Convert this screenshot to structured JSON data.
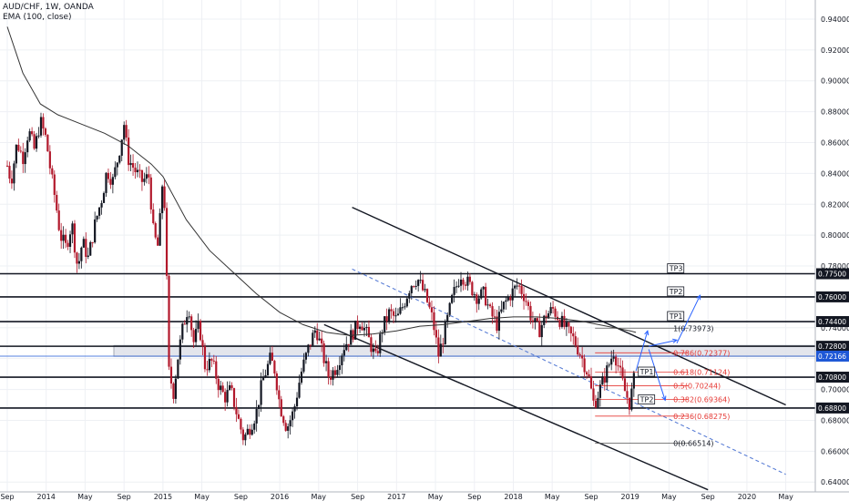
{
  "header": {
    "symbol_line": "AUD/CHF, 1W, OANDA",
    "indicator_line": "EMA (100, close)"
  },
  "colors": {
    "candle_up": "#131722",
    "candle_down": "#b2182b",
    "ema": "#333333",
    "fib": "#e53935",
    "channel_dash": "#5b7fd6",
    "last_price_badge": "#1e57d6",
    "level_badge": "#131722",
    "zone_fill": "#e0e3eb"
  },
  "chart_data": {
    "type": "candlestick",
    "title": "AUD/CHF, 1W, OANDA",
    "indicator": "EMA (100, close)",
    "y_axis": {
      "range": [
        0.636,
        0.95
      ],
      "ticks": [
        "0.94000",
        "0.92000",
        "0.90000",
        "0.88000",
        "0.86000",
        "0.84000",
        "0.82000",
        "0.80000",
        "0.78000",
        "0.76000",
        "0.74000",
        "0.72000",
        "0.70000",
        "0.68000",
        "0.66000",
        "0.64000"
      ],
      "grid": true
    },
    "x_axis": {
      "ticks": [
        {
          "label": "Sep",
          "t": 2013.667
        },
        {
          "label": "2014",
          "t": 2014.0
        },
        {
          "label": "May",
          "t": 2014.333
        },
        {
          "label": "Sep",
          "t": 2014.667
        },
        {
          "label": "2015",
          "t": 2015.0
        },
        {
          "label": "May",
          "t": 2015.333
        },
        {
          "label": "Sep",
          "t": 2015.667
        },
        {
          "label": "2016",
          "t": 2016.0
        },
        {
          "label": "May",
          "t": 2016.333
        },
        {
          "label": "Sep",
          "t": 2016.667
        },
        {
          "label": "2017",
          "t": 2017.0
        },
        {
          "label": "May",
          "t": 2017.333
        },
        {
          "label": "Sep",
          "t": 2017.667
        },
        {
          "label": "2018",
          "t": 2018.0
        },
        {
          "label": "May",
          "t": 2018.333
        },
        {
          "label": "Sep",
          "t": 2018.667
        },
        {
          "label": "2019",
          "t": 2019.0
        },
        {
          "label": "May",
          "t": 2019.333
        },
        {
          "label": "Sep",
          "t": 2019.667
        },
        {
          "label": "2020",
          "t": 2020.0
        },
        {
          "label": "May",
          "t": 2020.333
        }
      ],
      "range": [
        2013.667,
        2020.5
      ]
    },
    "price_path": [
      [
        2013.667,
        0.845
      ],
      [
        2013.7,
        0.835
      ],
      [
        2013.75,
        0.86
      ],
      [
        2013.8,
        0.85
      ],
      [
        2013.85,
        0.868
      ],
      [
        2013.9,
        0.855
      ],
      [
        2013.95,
        0.874
      ],
      [
        2014.0,
        0.862
      ],
      [
        2014.04,
        0.84
      ],
      [
        2014.08,
        0.822
      ],
      [
        2014.12,
        0.8
      ],
      [
        2014.17,
        0.792
      ],
      [
        2014.22,
        0.808
      ],
      [
        2014.27,
        0.778
      ],
      [
        2014.31,
        0.796
      ],
      [
        2014.36,
        0.785
      ],
      [
        2014.42,
        0.808
      ],
      [
        2014.48,
        0.825
      ],
      [
        2014.52,
        0.842
      ],
      [
        2014.57,
        0.835
      ],
      [
        2014.62,
        0.852
      ],
      [
        2014.667,
        0.872
      ],
      [
        2014.7,
        0.85
      ],
      [
        2014.76,
        0.842
      ],
      [
        2014.82,
        0.835
      ],
      [
        2014.88,
        0.838
      ],
      [
        2014.92,
        0.8
      ],
      [
        2014.96,
        0.792
      ],
      [
        2015.0,
        0.84
      ],
      [
        2015.02,
        0.81
      ],
      [
        2015.05,
        0.712
      ],
      [
        2015.09,
        0.698
      ],
      [
        2015.13,
        0.722
      ],
      [
        2015.17,
        0.74
      ],
      [
        2015.22,
        0.755
      ],
      [
        2015.26,
        0.73
      ],
      [
        2015.31,
        0.742
      ],
      [
        2015.36,
        0.715
      ],
      [
        2015.42,
        0.718
      ],
      [
        2015.48,
        0.702
      ],
      [
        2015.53,
        0.695
      ],
      [
        2015.58,
        0.7
      ],
      [
        2015.64,
        0.682
      ],
      [
        2015.69,
        0.668
      ],
      [
        2015.74,
        0.675
      ],
      [
        2015.8,
        0.685
      ],
      [
        2015.85,
        0.705
      ],
      [
        2015.92,
        0.72
      ],
      [
        2015.96,
        0.712
      ],
      [
        2016.0,
        0.69
      ],
      [
        2016.06,
        0.675
      ],
      [
        2016.12,
        0.686
      ],
      [
        2016.18,
        0.71
      ],
      [
        2016.25,
        0.728
      ],
      [
        2016.31,
        0.74
      ],
      [
        2016.36,
        0.725
      ],
      [
        2016.42,
        0.708
      ],
      [
        2016.48,
        0.714
      ],
      [
        2016.55,
        0.728
      ],
      [
        2016.62,
        0.736
      ],
      [
        2016.69,
        0.745
      ],
      [
        2016.75,
        0.735
      ],
      [
        2016.82,
        0.72
      ],
      [
        2016.88,
        0.74
      ],
      [
        2016.94,
        0.75
      ],
      [
        2017.0,
        0.745
      ],
      [
        2017.06,
        0.755
      ],
      [
        2017.12,
        0.768
      ],
      [
        2017.18,
        0.772
      ],
      [
        2017.25,
        0.76
      ],
      [
        2017.31,
        0.745
      ],
      [
        2017.36,
        0.722
      ],
      [
        2017.42,
        0.74
      ],
      [
        2017.48,
        0.76
      ],
      [
        2017.55,
        0.775
      ],
      [
        2017.62,
        0.768
      ],
      [
        2017.69,
        0.76
      ],
      [
        2017.75,
        0.762
      ],
      [
        2017.8,
        0.75
      ],
      [
        2017.86,
        0.742
      ],
      [
        2017.92,
        0.755
      ],
      [
        2017.98,
        0.762
      ],
      [
        2018.04,
        0.768
      ],
      [
        2018.1,
        0.76
      ],
      [
        2018.16,
        0.745
      ],
      [
        2018.22,
        0.738
      ],
      [
        2018.28,
        0.748
      ],
      [
        2018.34,
        0.752
      ],
      [
        2018.4,
        0.745
      ],
      [
        2018.46,
        0.738
      ],
      [
        2018.52,
        0.732
      ],
      [
        2018.58,
        0.722
      ],
      [
        2018.64,
        0.71
      ],
      [
        2018.69,
        0.69
      ],
      [
        2018.74,
        0.7
      ],
      [
        2018.8,
        0.712
      ],
      [
        2018.86,
        0.725
      ],
      [
        2018.9,
        0.715
      ],
      [
        2018.95,
        0.7
      ],
      [
        2019.0,
        0.69
      ],
      [
        2019.02,
        0.702
      ],
      [
        2019.05,
        0.712
      ]
    ],
    "ema_path": [
      [
        2013.667,
        0.935
      ],
      [
        2013.8,
        0.905
      ],
      [
        2013.95,
        0.885
      ],
      [
        2014.1,
        0.878
      ],
      [
        2014.3,
        0.872
      ],
      [
        2014.5,
        0.866
      ],
      [
        2014.7,
        0.858
      ],
      [
        2014.9,
        0.846
      ],
      [
        2015.0,
        0.838
      ],
      [
        2015.2,
        0.81
      ],
      [
        2015.4,
        0.79
      ],
      [
        2015.6,
        0.776
      ],
      [
        2015.8,
        0.762
      ],
      [
        2016.0,
        0.75
      ],
      [
        2016.2,
        0.742
      ],
      [
        2016.4,
        0.737
      ],
      [
        2016.6,
        0.735
      ],
      [
        2016.8,
        0.736
      ],
      [
        2017.0,
        0.738
      ],
      [
        2017.2,
        0.741
      ],
      [
        2017.4,
        0.742
      ],
      [
        2017.6,
        0.744
      ],
      [
        2017.8,
        0.746
      ],
      [
        2018.0,
        0.747
      ],
      [
        2018.2,
        0.747
      ],
      [
        2018.4,
        0.746
      ],
      [
        2018.6,
        0.744
      ],
      [
        2018.8,
        0.741
      ],
      [
        2019.0,
        0.738
      ],
      [
        2019.05,
        0.737
      ]
    ],
    "horizontal_levels": [
      {
        "price": 0.775,
        "label": "0.77500",
        "tag": "TP3",
        "tag_t": 2019.32
      },
      {
        "price": 0.76,
        "label": "0.76000",
        "tag": "TP2",
        "tag_t": 2019.32
      },
      {
        "price": 0.744,
        "label": "0.74400",
        "tag": "TP1",
        "tag_t": 2019.32
      },
      {
        "price": 0.728,
        "label": "0.72800",
        "tag": "",
        "tag_t": 0
      },
      {
        "price": 0.708,
        "label": "0.70800",
        "tag": "TP1",
        "tag_t": 2019.07
      },
      {
        "price": 0.688,
        "label": "0.68800",
        "tag": "",
        "tag_t": 0
      }
    ],
    "tp2_lower_tag": {
      "label": "TP2",
      "t": 2019.07,
      "price": 0.69
    },
    "last_price": {
      "price": 0.7216,
      "label": "0.72166"
    },
    "zone": {
      "top": 0.7285,
      "bottom": 0.7215
    },
    "fibonacci": [
      {
        "level": "1",
        "value": "0.73973",
        "price": 0.73973
      },
      {
        "level": "0.786",
        "value": "0.72377",
        "price": 0.72377
      },
      {
        "level": "0.618",
        "value": "0.71124",
        "price": 0.71124
      },
      {
        "level": "0.5",
        "value": "0.70244",
        "price": 0.70244
      },
      {
        "level": "0.382",
        "value": "0.69364",
        "price": 0.69364
      },
      {
        "level": "0.236",
        "value": "0.68275",
        "price": 0.68275
      },
      {
        "level": "0",
        "value": "0.66514",
        "price": 0.66514
      }
    ],
    "fib_label_format": "{level}({value})",
    "channel": {
      "upper": [
        [
          2016.62,
          0.818
        ],
        [
          2020.333,
          0.69
        ]
      ],
      "lower": [
        [
          2016.38,
          0.742
        ],
        [
          2019.667,
          0.635
        ]
      ],
      "dashed_mid": [
        [
          2016.62,
          0.778
        ],
        [
          2020.333,
          0.645
        ]
      ]
    },
    "projection_arrows": [
      [
        [
          2019.05,
          0.712
        ],
        [
          2019.15,
          0.738
        ]
      ],
      [
        [
          2019.16,
          0.728
        ],
        [
          2019.4,
          0.732
        ]
      ],
      [
        [
          2019.4,
          0.73
        ],
        [
          2019.6,
          0.761
        ]
      ],
      [
        [
          2019.16,
          0.726
        ],
        [
          2019.3,
          0.693
        ]
      ]
    ]
  }
}
